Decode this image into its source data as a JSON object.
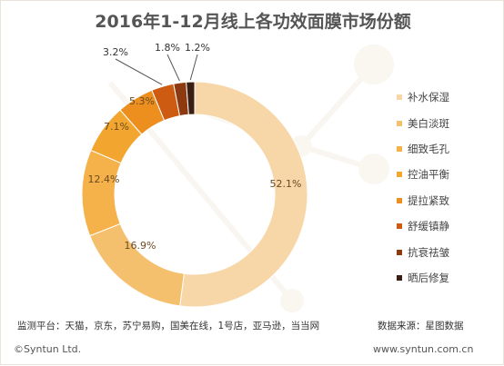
{
  "chart_data": {
    "type": "pie",
    "style": "donut",
    "title": "2016年1-12月线上各功效面膜市场份额",
    "categories": [
      "补水保湿",
      "美白淡斑",
      "细致毛孔",
      "控油平衡",
      "提拉紧致",
      "舒缓镇静",
      "抗衰祛皱",
      "晒后修复"
    ],
    "values": [
      52.1,
      16.9,
      12.4,
      7.1,
      5.3,
      3.2,
      1.8,
      1.2
    ],
    "labels": [
      "52.1%",
      "16.9%",
      "12.4%",
      "7.1%",
      "5.3%",
      "3.2%",
      "1.8%",
      "1.2%"
    ],
    "colors": [
      "#f7d6a8",
      "#f5c06d",
      "#f5b14a",
      "#f3a62f",
      "#ec8f1f",
      "#cd5b12",
      "#8e3a10",
      "#3b1f12"
    ],
    "legend_position": "right"
  },
  "footer": {
    "source": "监测平台：天猫，京东，苏宁易购，国美在线，1号店，亚马逊，当当网",
    "data_source": "数据来源：星图数据",
    "copyright": "©Syntun Ltd.",
    "website": "www.syntun.com.cn"
  }
}
